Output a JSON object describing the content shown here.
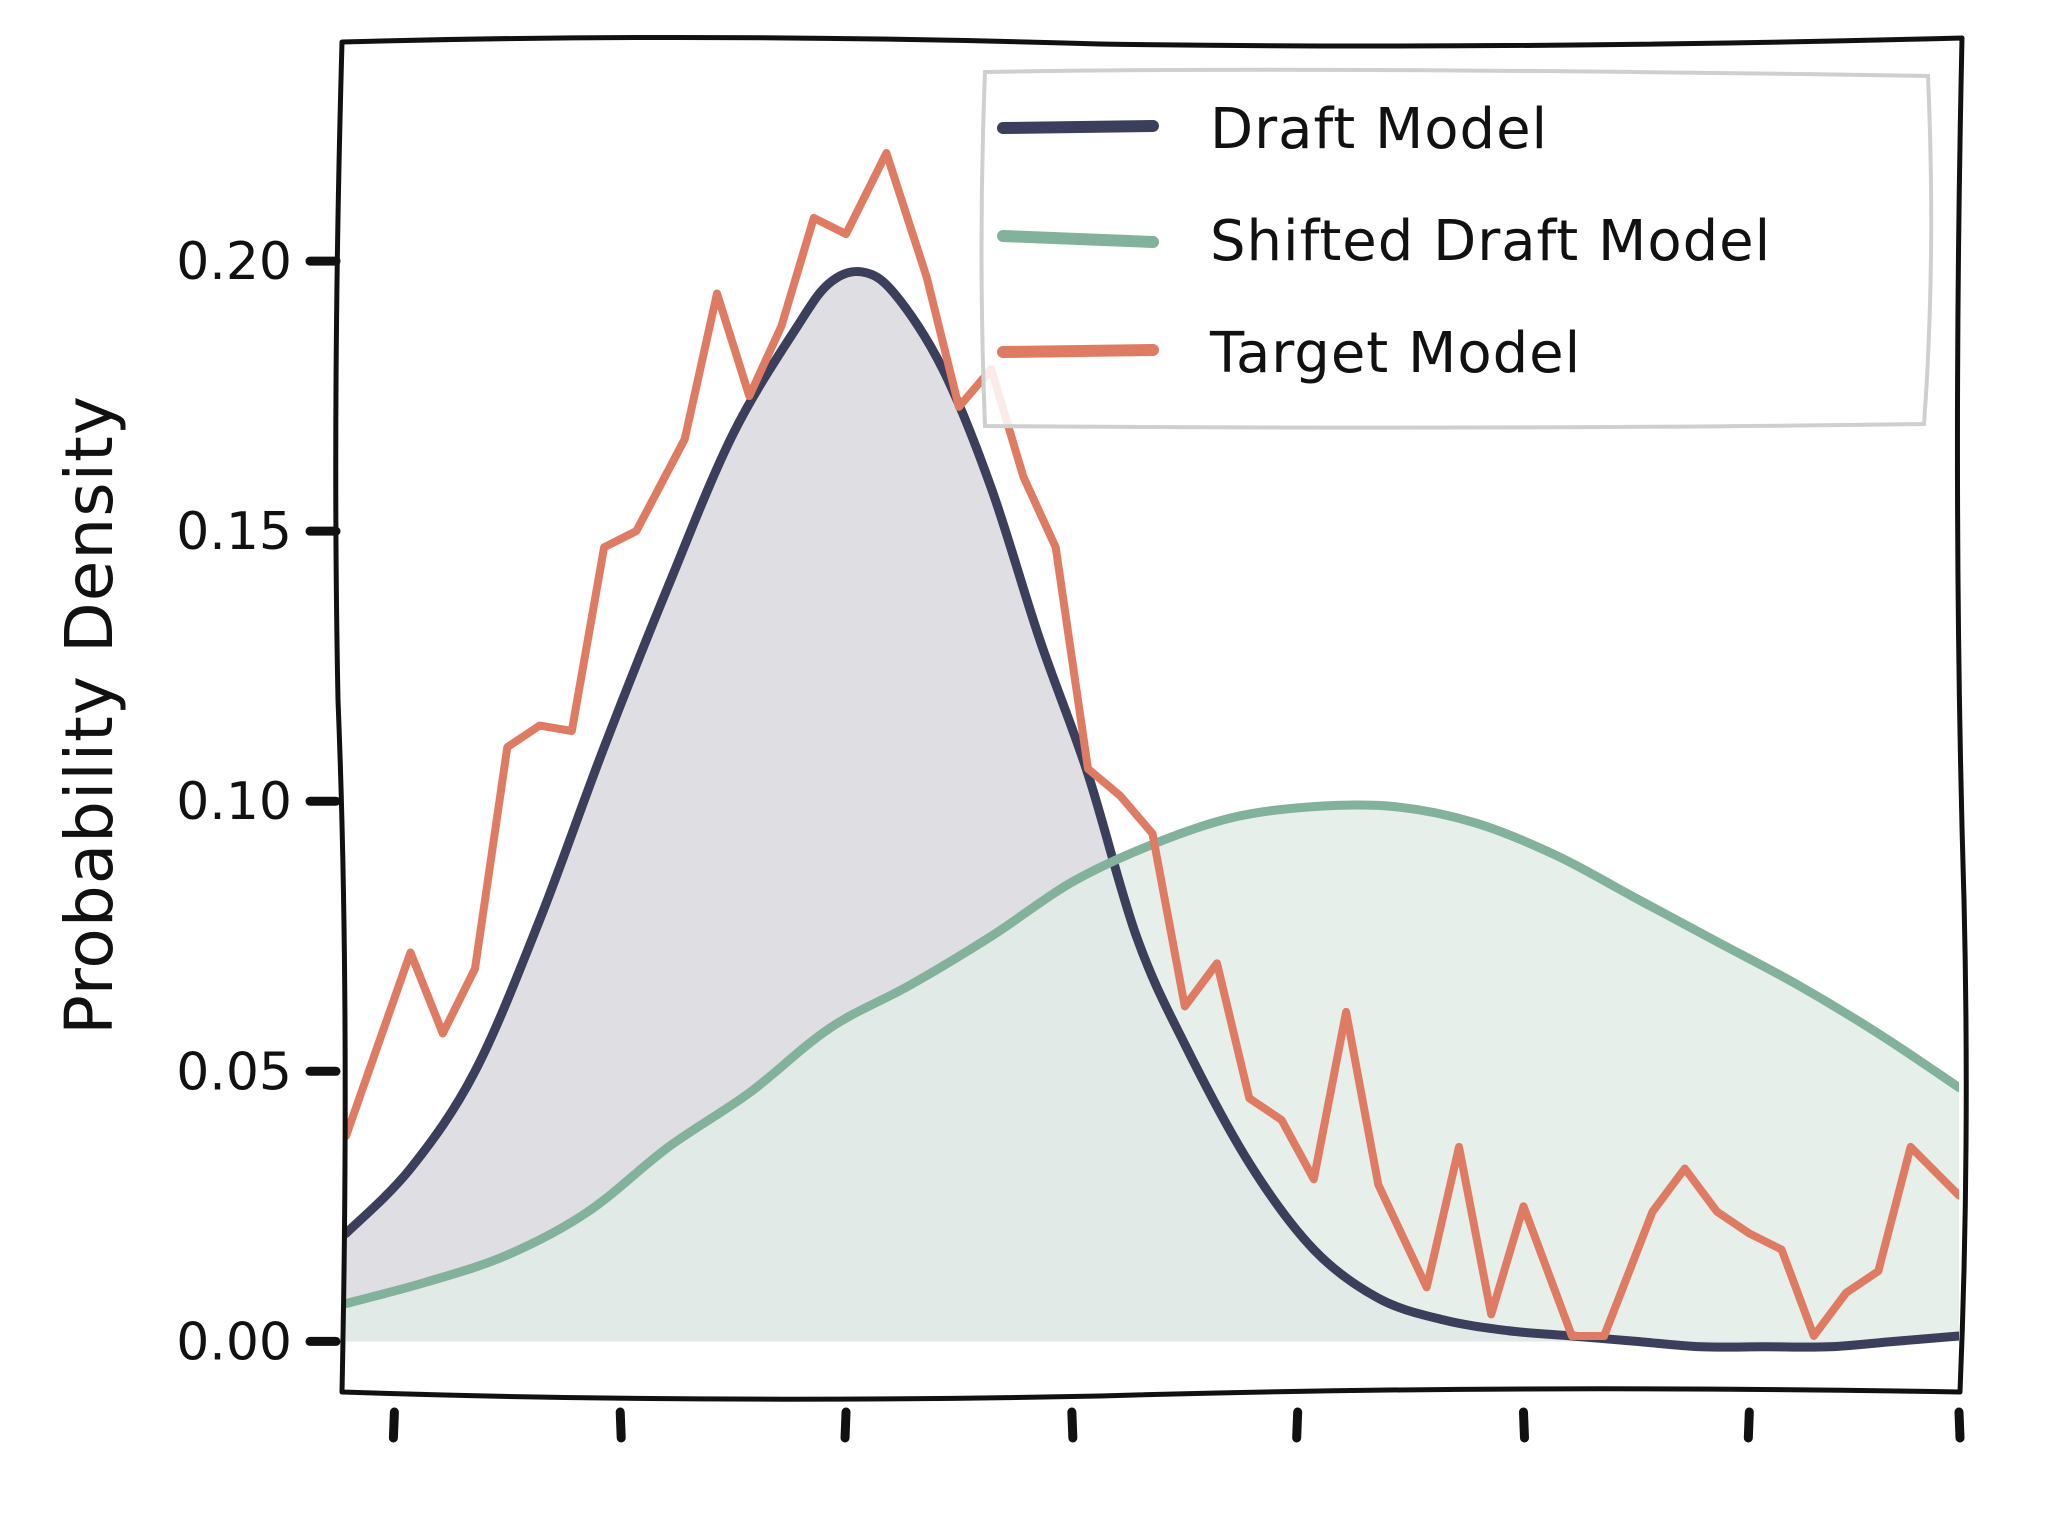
{
  "chart_data": {
    "type": "line",
    "title": "",
    "xlabel": "",
    "ylabel": "Probability Density",
    "ylim": [
      -0.009,
      0.24
    ],
    "xlim": [
      0,
      1
    ],
    "y_ticks": [
      0.0,
      0.05,
      0.1,
      0.15,
      0.2
    ],
    "y_tick_labels": [
      "0.00",
      "0.05",
      "0.10",
      "0.15",
      "0.20"
    ],
    "x_ticks": [
      0.03,
      0.17,
      0.31,
      0.45,
      0.59,
      0.73,
      0.87,
      1.0
    ],
    "x_tick_labels": [
      "",
      "",
      "",
      "",
      "",
      "",
      "",
      ""
    ],
    "grid": false,
    "legend_position": "top-right",
    "series": [
      {
        "name": "Draft Model",
        "color": "#3b3f5c",
        "fill": "#d8d8de",
        "points": [
          [
            0.0,
            0.02
          ],
          [
            0.04,
            0.032
          ],
          [
            0.08,
            0.05
          ],
          [
            0.12,
            0.078
          ],
          [
            0.16,
            0.11
          ],
          [
            0.2,
            0.14
          ],
          [
            0.24,
            0.168
          ],
          [
            0.28,
            0.188
          ],
          [
            0.3,
            0.196
          ],
          [
            0.32,
            0.198
          ],
          [
            0.34,
            0.194
          ],
          [
            0.37,
            0.18
          ],
          [
            0.4,
            0.158
          ],
          [
            0.43,
            0.13
          ],
          [
            0.46,
            0.105
          ],
          [
            0.49,
            0.075
          ],
          [
            0.52,
            0.055
          ],
          [
            0.56,
            0.033
          ],
          [
            0.6,
            0.017
          ],
          [
            0.64,
            0.008
          ],
          [
            0.68,
            0.004
          ],
          [
            0.72,
            0.002
          ],
          [
            0.76,
            0.001
          ],
          [
            0.8,
            0.0
          ],
          [
            0.84,
            -0.001
          ],
          [
            0.88,
            -0.001
          ],
          [
            0.92,
            -0.001
          ],
          [
            0.96,
            0.0
          ],
          [
            1.0,
            0.001
          ]
        ]
      },
      {
        "name": "Shifted Draft Model",
        "color": "#82b29b",
        "fill": "#e3ece7",
        "points": [
          [
            0.0,
            0.007
          ],
          [
            0.05,
            0.011
          ],
          [
            0.1,
            0.016
          ],
          [
            0.15,
            0.024
          ],
          [
            0.2,
            0.036
          ],
          [
            0.25,
            0.046
          ],
          [
            0.3,
            0.058
          ],
          [
            0.35,
            0.066
          ],
          [
            0.4,
            0.075
          ],
          [
            0.45,
            0.085
          ],
          [
            0.5,
            0.092
          ],
          [
            0.55,
            0.097
          ],
          [
            0.6,
            0.099
          ],
          [
            0.65,
            0.099
          ],
          [
            0.7,
            0.096
          ],
          [
            0.75,
            0.09
          ],
          [
            0.8,
            0.082
          ],
          [
            0.85,
            0.074
          ],
          [
            0.9,
            0.066
          ],
          [
            0.95,
            0.057
          ],
          [
            1.0,
            0.047
          ]
        ]
      },
      {
        "name": "Target Model",
        "color": "#e07b63",
        "fill": null,
        "points": [
          [
            0.0,
            0.038
          ],
          [
            0.04,
            0.072
          ],
          [
            0.06,
            0.057
          ],
          [
            0.08,
            0.069
          ],
          [
            0.1,
            0.11
          ],
          [
            0.12,
            0.114
          ],
          [
            0.14,
            0.113
          ],
          [
            0.16,
            0.147
          ],
          [
            0.18,
            0.15
          ],
          [
            0.21,
            0.167
          ],
          [
            0.23,
            0.194
          ],
          [
            0.25,
            0.175
          ],
          [
            0.27,
            0.188
          ],
          [
            0.29,
            0.208
          ],
          [
            0.31,
            0.205
          ],
          [
            0.335,
            0.22
          ],
          [
            0.36,
            0.197
          ],
          [
            0.38,
            0.173
          ],
          [
            0.4,
            0.18
          ],
          [
            0.42,
            0.16
          ],
          [
            0.44,
            0.147
          ],
          [
            0.46,
            0.106
          ],
          [
            0.48,
            0.101
          ],
          [
            0.5,
            0.094
          ],
          [
            0.52,
            0.062
          ],
          [
            0.54,
            0.07
          ],
          [
            0.56,
            0.045
          ],
          [
            0.58,
            0.041
          ],
          [
            0.6,
            0.03
          ],
          [
            0.62,
            0.061
          ],
          [
            0.64,
            0.029
          ],
          [
            0.67,
            0.01
          ],
          [
            0.69,
            0.036
          ],
          [
            0.71,
            0.005
          ],
          [
            0.73,
            0.025
          ],
          [
            0.76,
            0.001
          ],
          [
            0.78,
            0.001
          ],
          [
            0.81,
            0.024
          ],
          [
            0.83,
            0.032
          ],
          [
            0.85,
            0.024
          ],
          [
            0.87,
            0.02
          ],
          [
            0.89,
            0.017
          ],
          [
            0.91,
            0.001
          ],
          [
            0.93,
            0.009
          ],
          [
            0.95,
            0.013
          ],
          [
            0.97,
            0.036
          ],
          [
            1.0,
            0.027
          ]
        ]
      }
    ]
  }
}
